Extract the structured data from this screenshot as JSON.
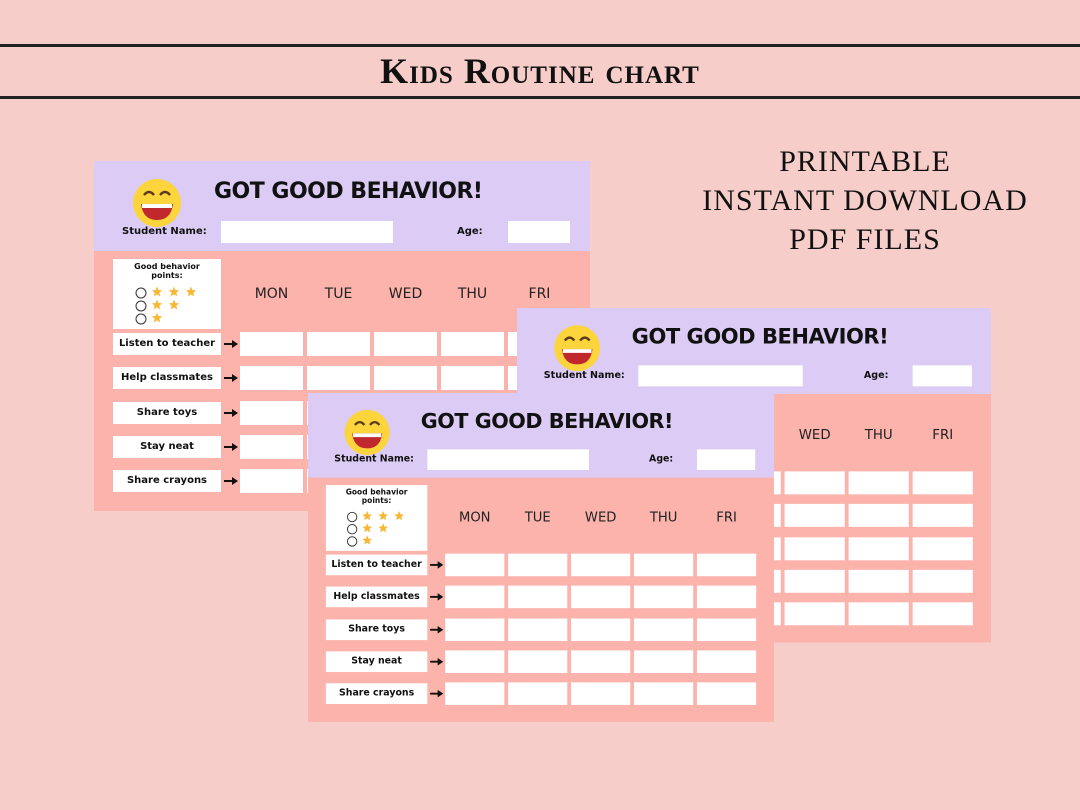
{
  "header": {
    "title": "Kids Routine chart"
  },
  "features": [
    "PRINTABLE",
    "INSTANT DOWNLOAD",
    "PDF FILES"
  ],
  "sheet": {
    "title": "GOT GOOD BEHAVIOR!",
    "name_label": "Student Name:",
    "age_label": "Age:",
    "points_label": "Good behavior points:",
    "days": [
      "MON",
      "TUE",
      "WED",
      "THU",
      "FRI"
    ],
    "tasks": [
      "Listen to teacher",
      "Help classmates",
      "Share toys",
      "Stay neat",
      "Share crayons"
    ]
  }
}
